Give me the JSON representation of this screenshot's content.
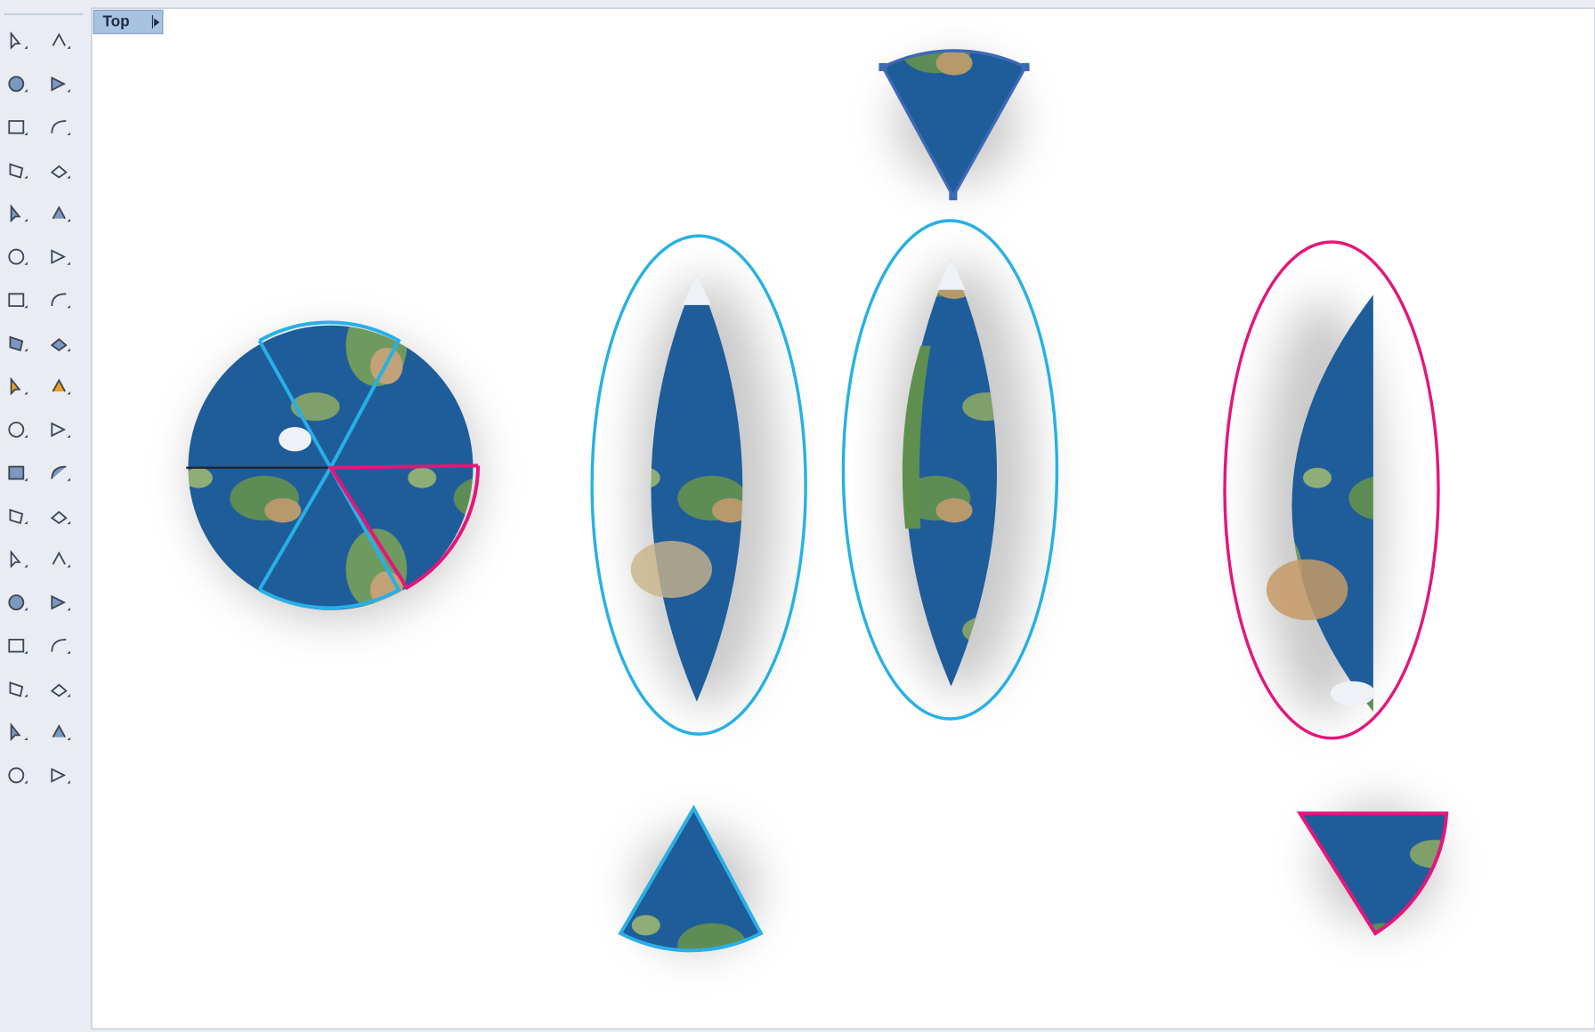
{
  "viewport": {
    "label": "Top"
  }
}
